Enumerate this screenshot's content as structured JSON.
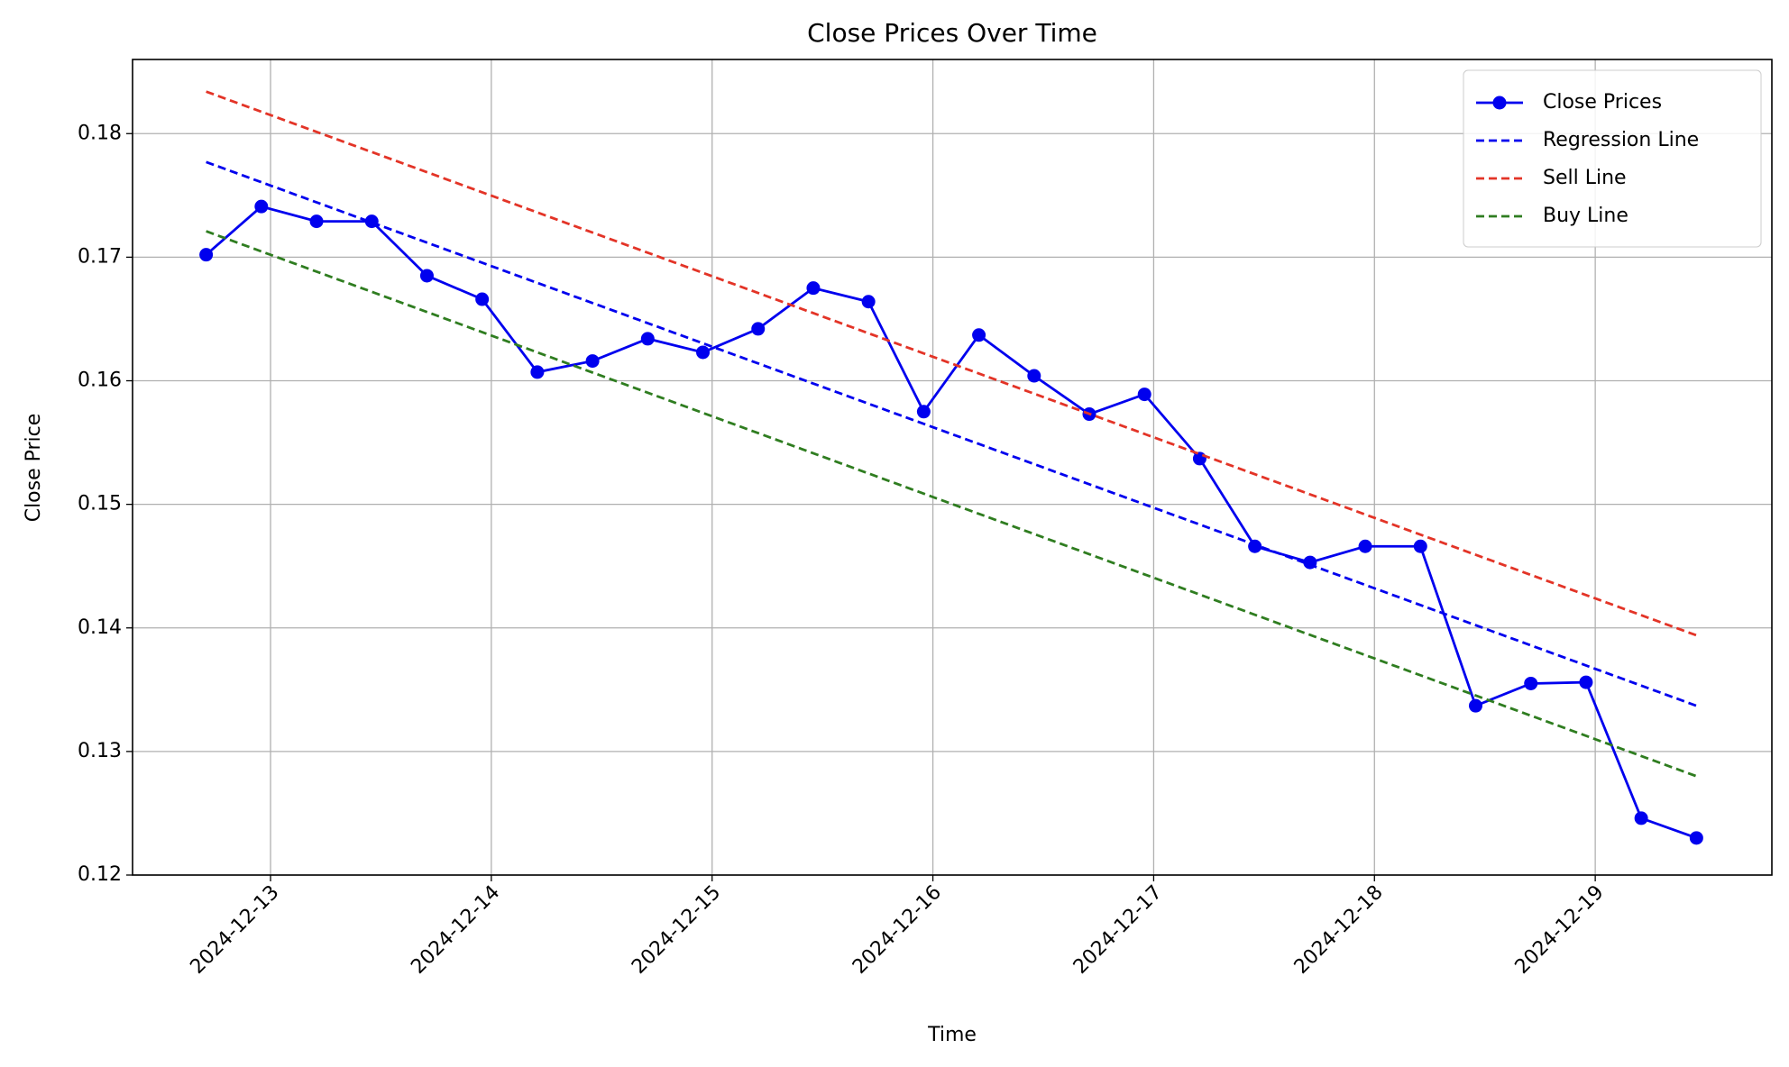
{
  "chart_data": {
    "type": "line",
    "title": "Close Prices Over Time",
    "xlabel": "Time",
    "ylabel": "Close Price",
    "xlim": [
      "2024-12-12T09:00",
      "2024-12-19T19:12"
    ],
    "xticks": [
      "2024-12-13",
      "2024-12-14",
      "2024-12-15",
      "2024-12-16",
      "2024-12-17",
      "2024-12-18",
      "2024-12-19"
    ],
    "ylim": [
      0.12,
      0.186
    ],
    "yticks": [
      {
        "value": 0.12,
        "label": "0.12"
      },
      {
        "value": 0.13,
        "label": "0.13"
      },
      {
        "value": 0.14,
        "label": "0.14"
      },
      {
        "value": 0.15,
        "label": "0.15"
      },
      {
        "value": 0.16,
        "label": "0.16"
      },
      {
        "value": 0.17,
        "label": "0.17"
      },
      {
        "value": 0.18,
        "label": "0.18"
      }
    ],
    "grid": true,
    "legend": "upper right",
    "series": [
      {
        "name": "Close Prices",
        "color": "#0000ee",
        "marker": "circle",
        "linestyle": "solid",
        "x": [
          "2024-12-12T17:00",
          "2024-12-12T23:00",
          "2024-12-13T05:00",
          "2024-12-13T11:00",
          "2024-12-13T17:00",
          "2024-12-13T23:00",
          "2024-12-14T05:00",
          "2024-12-14T11:00",
          "2024-12-14T17:00",
          "2024-12-14T23:00",
          "2024-12-15T05:00",
          "2024-12-15T11:00",
          "2024-12-15T17:00",
          "2024-12-15T23:00",
          "2024-12-16T05:00",
          "2024-12-16T11:00",
          "2024-12-16T17:00",
          "2024-12-16T23:00",
          "2024-12-17T05:00",
          "2024-12-17T11:00",
          "2024-12-17T17:00",
          "2024-12-17T23:00",
          "2024-12-18T05:00",
          "2024-12-18T11:00",
          "2024-12-18T17:00",
          "2024-12-18T23:00",
          "2024-12-19T05:00",
          "2024-12-19T11:00"
        ],
        "values": [
          0.1702,
          0.1741,
          0.1729,
          0.1729,
          0.1685,
          0.1666,
          0.1607,
          0.1616,
          0.1634,
          0.1623,
          0.1642,
          0.1675,
          0.1664,
          0.1575,
          0.1637,
          0.1604,
          0.1573,
          0.1589,
          0.1537,
          0.1466,
          0.1453,
          0.1466,
          0.1466,
          0.1337,
          0.1355,
          0.1356,
          0.1246,
          0.123
        ]
      },
      {
        "name": "Regression Line",
        "color": "#0000ee",
        "linestyle": "dashed",
        "x": [
          "2024-12-12T17:00",
          "2024-12-19T11:00"
        ],
        "values": [
          0.1777,
          0.1337
        ]
      },
      {
        "name": "Sell Line",
        "color": "#e33427",
        "linestyle": "dashed",
        "x": [
          "2024-12-12T17:00",
          "2024-12-19T11:00"
        ],
        "values": [
          0.1834,
          0.1394
        ]
      },
      {
        "name": "Buy Line",
        "color": "#2f7d20",
        "linestyle": "dashed",
        "x": [
          "2024-12-12T17:00",
          "2024-12-19T11:00"
        ],
        "values": [
          0.1721,
          0.128
        ]
      }
    ]
  }
}
